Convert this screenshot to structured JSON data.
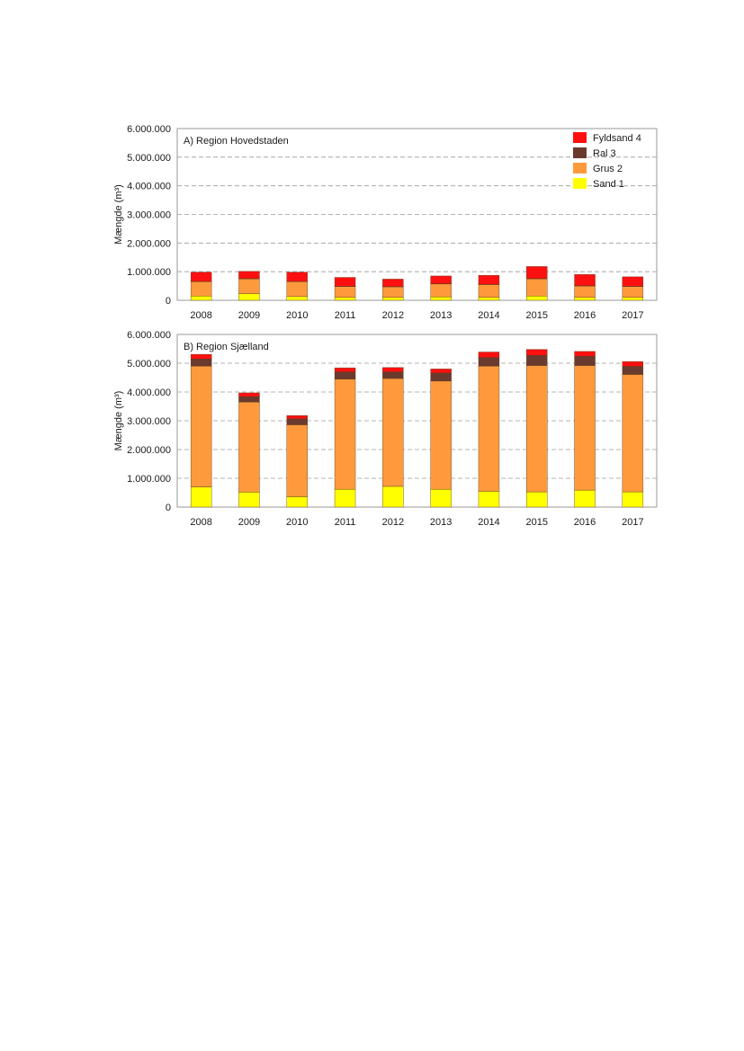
{
  "legend": [
    {
      "label": "Fyldsand 4",
      "color": "#ff1010"
    },
    {
      "label": "Ral 3",
      "color": "#6b3a2e"
    },
    {
      "label": "Grus 2",
      "color": "#ff9a3c"
    },
    {
      "label": "Sand 1",
      "color": "#ffff00"
    }
  ],
  "chart_data": [
    {
      "type": "bar",
      "stacked": true,
      "title": "A) Region Hovedstaden",
      "ylabel": "Mængde (m³)",
      "ylim": [
        0,
        6000000
      ],
      "yticks": [
        0,
        1000000,
        2000000,
        3000000,
        4000000,
        5000000,
        6000000
      ],
      "ytick_labels": [
        "0",
        "1.000.000",
        "2.000.000",
        "3.000.000",
        "4.000.000",
        "5.000.000",
        "6.000.000"
      ],
      "grid": "horizontal dashed",
      "legend_position": "top-right",
      "categories": [
        "2008",
        "2009",
        "2010",
        "2011",
        "2012",
        "2013",
        "2014",
        "2015",
        "2016",
        "2017"
      ],
      "series": [
        {
          "name": "Sand 1",
          "color": "#ffff00",
          "values": [
            150000,
            230000,
            130000,
            100000,
            100000,
            120000,
            100000,
            150000,
            100000,
            100000
          ]
        },
        {
          "name": "Grus 2",
          "color": "#ff9a3c",
          "values": [
            500000,
            520000,
            520000,
            380000,
            370000,
            450000,
            450000,
            600000,
            400000,
            380000
          ]
        },
        {
          "name": "Ral 3",
          "color": "#6b3a2e",
          "values": [
            10000,
            10000,
            10000,
            10000,
            10000,
            10000,
            10000,
            10000,
            10000,
            10000
          ]
        },
        {
          "name": "Fyldsand 4",
          "color": "#ff1010",
          "values": [
            320000,
            250000,
            320000,
            310000,
            260000,
            270000,
            310000,
            420000,
            390000,
            330000
          ]
        }
      ]
    },
    {
      "type": "bar",
      "stacked": true,
      "title": "B) Region Sjælland",
      "ylabel": "Mængde (m³)",
      "ylim": [
        0,
        6000000
      ],
      "yticks": [
        0,
        1000000,
        2000000,
        3000000,
        4000000,
        5000000,
        6000000
      ],
      "ytick_labels": [
        "0",
        "1.000.000",
        "2.000.000",
        "3.000.000",
        "4.000.000",
        "5.000.000",
        "6.000.000"
      ],
      "grid": "horizontal dashed",
      "categories": [
        "2008",
        "2009",
        "2010",
        "2011",
        "2012",
        "2013",
        "2014",
        "2015",
        "2016",
        "2017"
      ],
      "series": [
        {
          "name": "Sand 1",
          "color": "#ffff00",
          "values": [
            700000,
            520000,
            360000,
            620000,
            720000,
            620000,
            550000,
            530000,
            590000,
            530000
          ]
        },
        {
          "name": "Grus 2",
          "color": "#ff9a3c",
          "values": [
            4200000,
            3130000,
            2500000,
            3830000,
            3750000,
            3760000,
            4350000,
            4390000,
            4330000,
            4080000
          ]
        },
        {
          "name": "Ral 3",
          "color": "#6b3a2e",
          "values": [
            250000,
            190000,
            210000,
            250000,
            230000,
            280000,
            300000,
            350000,
            320000,
            280000
          ]
        },
        {
          "name": "Fyldsand 4",
          "color": "#ff1010",
          "values": [
            160000,
            130000,
            110000,
            140000,
            150000,
            140000,
            190000,
            210000,
            170000,
            170000
          ]
        }
      ]
    }
  ]
}
